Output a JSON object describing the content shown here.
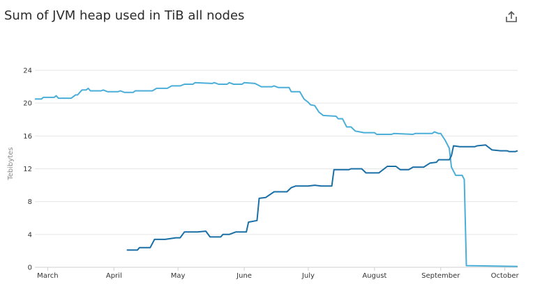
{
  "header": {
    "title": "Sum of JVM heap used in TiB all nodes",
    "share_icon": "share-icon"
  },
  "chart_data": {
    "type": "line",
    "title": "Sum of JVM heap used in TiB all nodes",
    "xlabel": "",
    "ylabel": "Tebibytes",
    "ylim": [
      0,
      24
    ],
    "yticks": [
      0,
      4,
      8,
      12,
      16,
      20,
      24
    ],
    "xlim": [
      "2024-02-24",
      "2024-10-07"
    ],
    "xticks": [
      {
        "label": "March",
        "date": "2024-03-01"
      },
      {
        "label": "April",
        "date": "2024-04-01"
      },
      {
        "label": "May",
        "date": "2024-05-01"
      },
      {
        "label": "June",
        "date": "2024-06-01"
      },
      {
        "label": "July",
        "date": "2024-07-01"
      },
      {
        "label": "August",
        "date": "2024-08-01"
      },
      {
        "label": "September",
        "date": "2024-09-01"
      },
      {
        "label": "October",
        "date": "2024-10-01"
      }
    ],
    "grid": true,
    "legend": "none",
    "series": [
      {
        "color": "#4aaed8",
        "points": [
          [
            "2024-02-24",
            20.5
          ],
          [
            "2024-02-27",
            20.5
          ],
          [
            "2024-02-28",
            20.7
          ],
          [
            "2024-03-04",
            20.7
          ],
          [
            "2024-03-05",
            20.9
          ],
          [
            "2024-03-06",
            20.6
          ],
          [
            "2024-03-12",
            20.6
          ],
          [
            "2024-03-14",
            21.0
          ],
          [
            "2024-03-15",
            21.0
          ],
          [
            "2024-03-17",
            21.6
          ],
          [
            "2024-03-19",
            21.6
          ],
          [
            "2024-03-20",
            21.8
          ],
          [
            "2024-03-21",
            21.5
          ],
          [
            "2024-03-26",
            21.5
          ],
          [
            "2024-03-27",
            21.6
          ],
          [
            "2024-03-29",
            21.4
          ],
          [
            "2024-04-03",
            21.4
          ],
          [
            "2024-04-04",
            21.5
          ],
          [
            "2024-04-06",
            21.3
          ],
          [
            "2024-04-10",
            21.3
          ],
          [
            "2024-04-11",
            21.5
          ],
          [
            "2024-04-19",
            21.5
          ],
          [
            "2024-04-21",
            21.8
          ],
          [
            "2024-04-26",
            21.8
          ],
          [
            "2024-04-28",
            22.1
          ],
          [
            "2024-05-02",
            22.1
          ],
          [
            "2024-05-04",
            22.3
          ],
          [
            "2024-05-08",
            22.3
          ],
          [
            "2024-05-09",
            22.5
          ],
          [
            "2024-05-17",
            22.4
          ],
          [
            "2024-05-18",
            22.5
          ],
          [
            "2024-05-20",
            22.3
          ],
          [
            "2024-05-24",
            22.3
          ],
          [
            "2024-05-25",
            22.5
          ],
          [
            "2024-05-27",
            22.3
          ],
          [
            "2024-05-31",
            22.3
          ],
          [
            "2024-06-01",
            22.5
          ],
          [
            "2024-06-06",
            22.4
          ],
          [
            "2024-06-09",
            22.0
          ],
          [
            "2024-06-14",
            22.0
          ],
          [
            "2024-06-15",
            22.1
          ],
          [
            "2024-06-17",
            21.9
          ],
          [
            "2024-06-22",
            21.9
          ],
          [
            "2024-06-23",
            21.4
          ],
          [
            "2024-06-27",
            21.4
          ],
          [
            "2024-06-29",
            20.5
          ],
          [
            "2024-07-01",
            20.1
          ],
          [
            "2024-07-02",
            19.8
          ],
          [
            "2024-07-04",
            19.7
          ],
          [
            "2024-07-06",
            18.9
          ],
          [
            "2024-07-08",
            18.5
          ],
          [
            "2024-07-14",
            18.4
          ],
          [
            "2024-07-15",
            18.1
          ],
          [
            "2024-07-17",
            18.1
          ],
          [
            "2024-07-19",
            17.1
          ],
          [
            "2024-07-21",
            17.1
          ],
          [
            "2024-07-23",
            16.6
          ],
          [
            "2024-07-25",
            16.5
          ],
          [
            "2024-07-27",
            16.4
          ],
          [
            "2024-08-01",
            16.4
          ],
          [
            "2024-08-02",
            16.2
          ],
          [
            "2024-08-09",
            16.2
          ],
          [
            "2024-08-10",
            16.3
          ],
          [
            "2024-08-19",
            16.2
          ],
          [
            "2024-08-20",
            16.3
          ],
          [
            "2024-08-28",
            16.3
          ],
          [
            "2024-08-29",
            16.5
          ],
          [
            "2024-08-31",
            16.3
          ],
          [
            "2024-09-01",
            16.3
          ],
          [
            "2024-09-02",
            15.9
          ],
          [
            "2024-09-03",
            15.5
          ],
          [
            "2024-09-04",
            15.0
          ],
          [
            "2024-09-05",
            14.5
          ],
          [
            "2024-09-06",
            12.2
          ],
          [
            "2024-09-08",
            11.2
          ],
          [
            "2024-09-11",
            11.2
          ],
          [
            "2024-09-12",
            10.7
          ],
          [
            "2024-09-13",
            0.2
          ],
          [
            "2024-10-07",
            0.1
          ]
        ]
      },
      {
        "color": "#1a6fa6",
        "points": [
          [
            "2024-04-07",
            2.1
          ],
          [
            "2024-04-12",
            2.1
          ],
          [
            "2024-04-13",
            2.4
          ],
          [
            "2024-04-18",
            2.4
          ],
          [
            "2024-04-20",
            3.4
          ],
          [
            "2024-04-25",
            3.4
          ],
          [
            "2024-04-30",
            3.6
          ],
          [
            "2024-05-02",
            3.6
          ],
          [
            "2024-05-04",
            4.3
          ],
          [
            "2024-05-10",
            4.3
          ],
          [
            "2024-05-14",
            4.4
          ],
          [
            "2024-05-16",
            3.7
          ],
          [
            "2024-05-21",
            3.7
          ],
          [
            "2024-05-22",
            4.0
          ],
          [
            "2024-05-25",
            4.0
          ],
          [
            "2024-05-28",
            4.3
          ],
          [
            "2024-06-02",
            4.3
          ],
          [
            "2024-06-03",
            5.5
          ],
          [
            "2024-06-07",
            5.7
          ],
          [
            "2024-06-08",
            8.4
          ],
          [
            "2024-06-11",
            8.5
          ],
          [
            "2024-06-15",
            9.2
          ],
          [
            "2024-06-21",
            9.2
          ],
          [
            "2024-06-23",
            9.7
          ],
          [
            "2024-06-25",
            9.9
          ],
          [
            "2024-07-01",
            9.9
          ],
          [
            "2024-07-04",
            10.0
          ],
          [
            "2024-07-07",
            9.9
          ],
          [
            "2024-07-12",
            9.9
          ],
          [
            "2024-07-13",
            11.9
          ],
          [
            "2024-07-20",
            11.9
          ],
          [
            "2024-07-21",
            12.0
          ],
          [
            "2024-07-26",
            12.0
          ],
          [
            "2024-07-28",
            11.5
          ],
          [
            "2024-08-03",
            11.5
          ],
          [
            "2024-08-07",
            12.3
          ],
          [
            "2024-08-11",
            12.3
          ],
          [
            "2024-08-13",
            11.9
          ],
          [
            "2024-08-17",
            11.9
          ],
          [
            "2024-08-19",
            12.2
          ],
          [
            "2024-08-24",
            12.2
          ],
          [
            "2024-08-27",
            12.7
          ],
          [
            "2024-08-30",
            12.8
          ],
          [
            "2024-08-31",
            13.1
          ],
          [
            "2024-09-05",
            13.1
          ],
          [
            "2024-09-06",
            13.6
          ],
          [
            "2024-09-07",
            14.8
          ],
          [
            "2024-09-10",
            14.7
          ],
          [
            "2024-09-17",
            14.7
          ],
          [
            "2024-09-18",
            14.8
          ],
          [
            "2024-09-22",
            14.9
          ],
          [
            "2024-09-25",
            14.3
          ],
          [
            "2024-09-29",
            14.2
          ],
          [
            "2024-10-02",
            14.2
          ],
          [
            "2024-10-03",
            14.1
          ],
          [
            "2024-10-06",
            14.1
          ],
          [
            "2024-10-07",
            14.2
          ]
        ]
      }
    ]
  }
}
